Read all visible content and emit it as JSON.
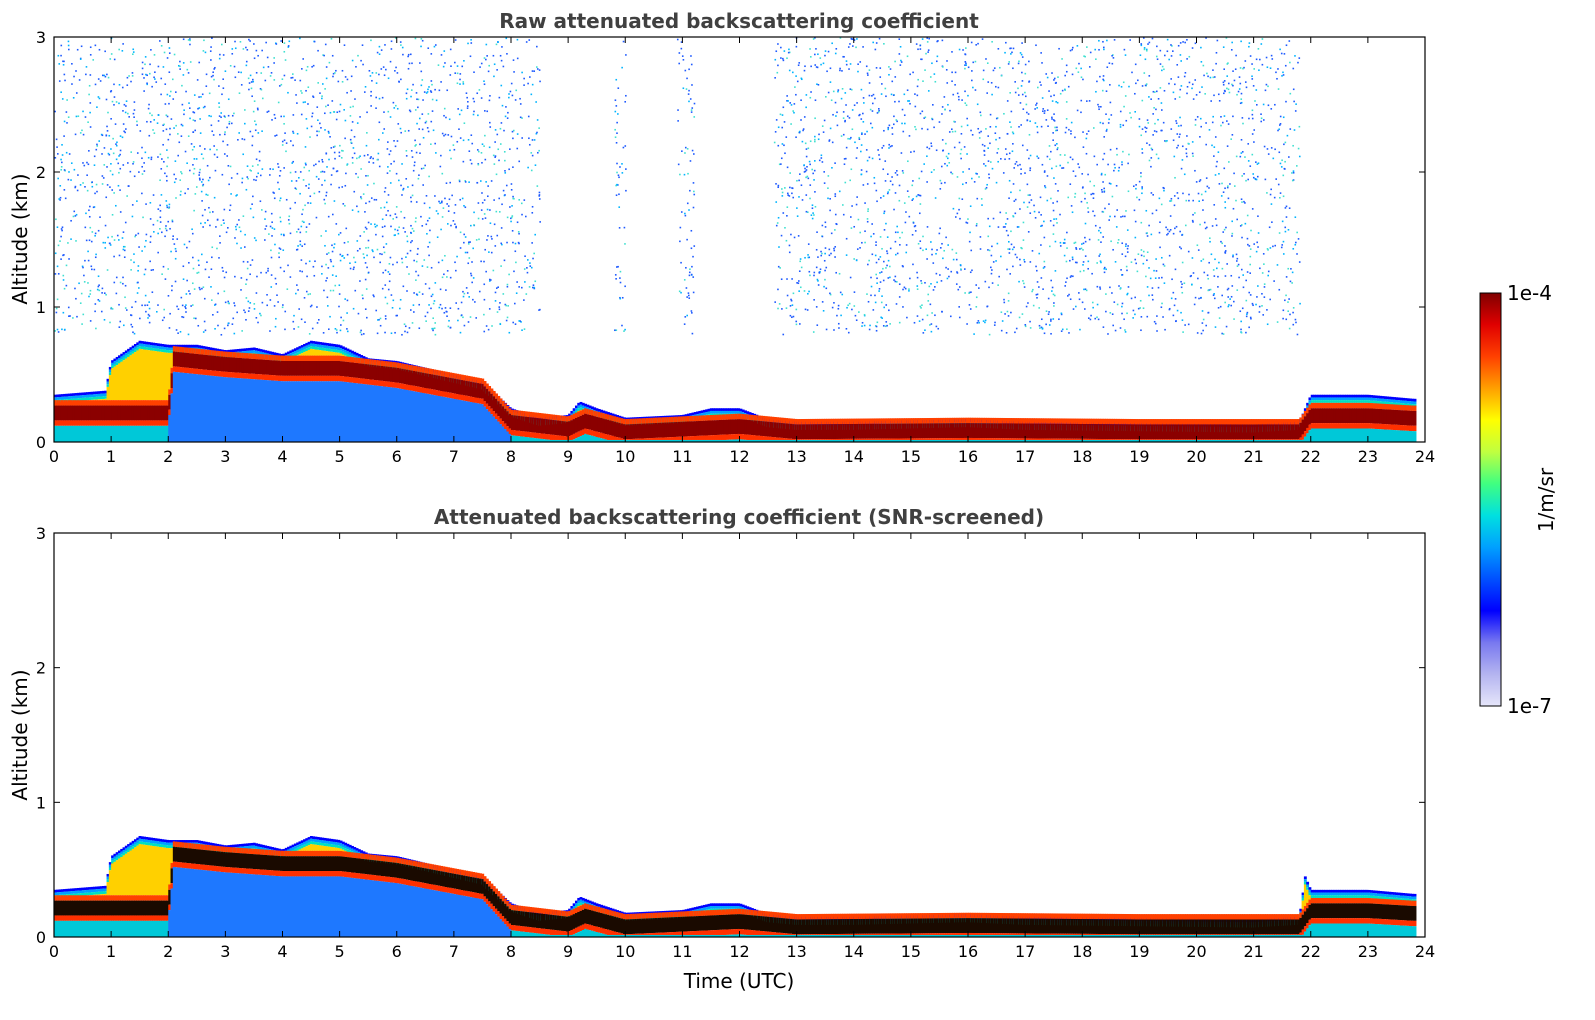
{
  "chart_data": [
    {
      "type": "heatmap",
      "title": "Raw attenuated backscattering coefficient",
      "xlabel": "",
      "ylabel": "Altitude (km)",
      "xlim": [
        0,
        24
      ],
      "ylim": [
        0,
        3
      ],
      "x_ticks": [
        "0",
        "1",
        "2",
        "3",
        "4",
        "5",
        "6",
        "7",
        "8",
        "9",
        "10",
        "11",
        "12",
        "13",
        "14",
        "15",
        "16",
        "17",
        "18",
        "19",
        "20",
        "21",
        "22",
        "23",
        "24"
      ],
      "y_ticks": [
        "0",
        "1",
        "2",
        "3"
      ],
      "grid": false,
      "layer_top_km": [
        [
          0,
          0.35
        ],
        [
          0.9,
          0.38
        ],
        [
          1.0,
          0.6
        ],
        [
          1.5,
          0.75
        ],
        [
          2.0,
          0.72
        ],
        [
          2.5,
          0.72
        ],
        [
          3.0,
          0.68
        ],
        [
          3.5,
          0.7
        ],
        [
          4.0,
          0.65
        ],
        [
          4.5,
          0.75
        ],
        [
          5.0,
          0.72
        ],
        [
          5.5,
          0.62
        ],
        [
          6.0,
          0.6
        ],
        [
          6.5,
          0.55
        ],
        [
          7.0,
          0.5
        ],
        [
          7.5,
          0.45
        ],
        [
          8.0,
          0.25
        ],
        [
          8.5,
          0.18
        ],
        [
          9.0,
          0.2
        ],
        [
          9.2,
          0.3
        ],
        [
          9.5,
          0.25
        ],
        [
          10.0,
          0.18
        ],
        [
          11.0,
          0.2
        ],
        [
          11.5,
          0.25
        ],
        [
          12.0,
          0.25
        ],
        [
          12.5,
          0.17
        ],
        [
          13.0,
          0.15
        ],
        [
          14.0,
          0.15
        ],
        [
          16.0,
          0.17
        ],
        [
          17.0,
          0.15
        ],
        [
          19.0,
          0.14
        ],
        [
          21.0,
          0.13
        ],
        [
          21.8,
          0.15
        ],
        [
          22.0,
          0.35
        ],
        [
          23.0,
          0.35
        ],
        [
          23.8,
          0.32
        ]
      ],
      "layer_peak_km": [
        [
          0,
          0.22
        ],
        [
          1.0,
          0.22
        ],
        [
          2.0,
          0.22
        ],
        [
          2.1,
          0.62
        ],
        [
          3.0,
          0.58
        ],
        [
          4.0,
          0.55
        ],
        [
          5.0,
          0.55
        ],
        [
          6.0,
          0.5
        ],
        [
          7.0,
          0.42
        ],
        [
          7.5,
          0.38
        ],
        [
          8.0,
          0.15
        ],
        [
          9.0,
          0.1
        ],
        [
          9.3,
          0.16
        ],
        [
          10.0,
          0.08
        ],
        [
          11.0,
          0.1
        ],
        [
          12.0,
          0.12
        ],
        [
          13.0,
          0.08
        ],
        [
          16.0,
          0.09
        ],
        [
          19.0,
          0.08
        ],
        [
          21.8,
          0.08
        ],
        [
          22.0,
          0.2
        ],
        [
          23.0,
          0.2
        ],
        [
          23.8,
          0.18
        ]
      ],
      "noise_above_layer_periods": [
        [
          0,
          8.5
        ],
        [
          9.8,
          10.0
        ],
        [
          10.9,
          11.2
        ],
        [
          12.6,
          21.8
        ]
      ]
    },
    {
      "type": "heatmap",
      "title": "Attenuated backscattering coefficient (SNR-screened)",
      "xlabel": "Time (UTC)",
      "ylabel": "Altitude (km)",
      "xlim": [
        0,
        24
      ],
      "ylim": [
        0,
        3
      ],
      "x_ticks": [
        "0",
        "1",
        "2",
        "3",
        "4",
        "5",
        "6",
        "7",
        "8",
        "9",
        "10",
        "11",
        "12",
        "13",
        "14",
        "15",
        "16",
        "17",
        "18",
        "19",
        "20",
        "21",
        "22",
        "23",
        "24"
      ],
      "y_ticks": [
        "0",
        "1",
        "2",
        "3"
      ],
      "grid": false,
      "layer_top_km": [
        [
          0,
          0.35
        ],
        [
          0.9,
          0.38
        ],
        [
          1.0,
          0.6
        ],
        [
          1.5,
          0.75
        ],
        [
          2.0,
          0.72
        ],
        [
          2.5,
          0.72
        ],
        [
          3.0,
          0.68
        ],
        [
          3.5,
          0.7
        ],
        [
          4.0,
          0.65
        ],
        [
          4.5,
          0.75
        ],
        [
          5.0,
          0.72
        ],
        [
          5.5,
          0.62
        ],
        [
          6.0,
          0.6
        ],
        [
          6.5,
          0.55
        ],
        [
          7.0,
          0.5
        ],
        [
          7.5,
          0.45
        ],
        [
          8.0,
          0.25
        ],
        [
          8.5,
          0.18
        ],
        [
          9.0,
          0.2
        ],
        [
          9.2,
          0.3
        ],
        [
          9.5,
          0.25
        ],
        [
          10.0,
          0.18
        ],
        [
          11.0,
          0.2
        ],
        [
          11.5,
          0.25
        ],
        [
          12.0,
          0.25
        ],
        [
          12.5,
          0.17
        ],
        [
          13.0,
          0.15
        ],
        [
          14.0,
          0.15
        ],
        [
          16.0,
          0.17
        ],
        [
          17.0,
          0.15
        ],
        [
          19.0,
          0.14
        ],
        [
          21.0,
          0.13
        ],
        [
          21.8,
          0.15
        ],
        [
          21.9,
          0.45
        ],
        [
          22.0,
          0.35
        ],
        [
          23.0,
          0.35
        ],
        [
          23.8,
          0.32
        ]
      ],
      "layer_peak_km": [
        [
          0,
          0.22
        ],
        [
          1.0,
          0.22
        ],
        [
          2.0,
          0.22
        ],
        [
          2.1,
          0.62
        ],
        [
          3.0,
          0.58
        ],
        [
          4.0,
          0.55
        ],
        [
          5.0,
          0.55
        ],
        [
          6.0,
          0.5
        ],
        [
          7.0,
          0.42
        ],
        [
          7.5,
          0.38
        ],
        [
          8.0,
          0.15
        ],
        [
          9.0,
          0.1
        ],
        [
          9.3,
          0.16
        ],
        [
          10.0,
          0.08
        ],
        [
          11.0,
          0.1
        ],
        [
          12.0,
          0.12
        ],
        [
          13.0,
          0.08
        ],
        [
          16.0,
          0.09
        ],
        [
          19.0,
          0.08
        ],
        [
          21.8,
          0.08
        ],
        [
          22.0,
          0.2
        ],
        [
          23.0,
          0.2
        ],
        [
          23.8,
          0.18
        ]
      ]
    }
  ],
  "colorbar": {
    "label": "1/m/sr",
    "max_label": "1e-4",
    "min_label": "1e-7",
    "range": [
      1e-07,
      0.0001
    ],
    "scale": "log",
    "colors": [
      "#e6e6fa",
      "#b4b4f0",
      "#7878f0",
      "#0000ff",
      "#0050ff",
      "#00a0ff",
      "#00e0e0",
      "#40ff80",
      "#c0ff40",
      "#ffff00",
      "#ffa000",
      "#ff4000",
      "#e00000",
      "#800000"
    ]
  }
}
